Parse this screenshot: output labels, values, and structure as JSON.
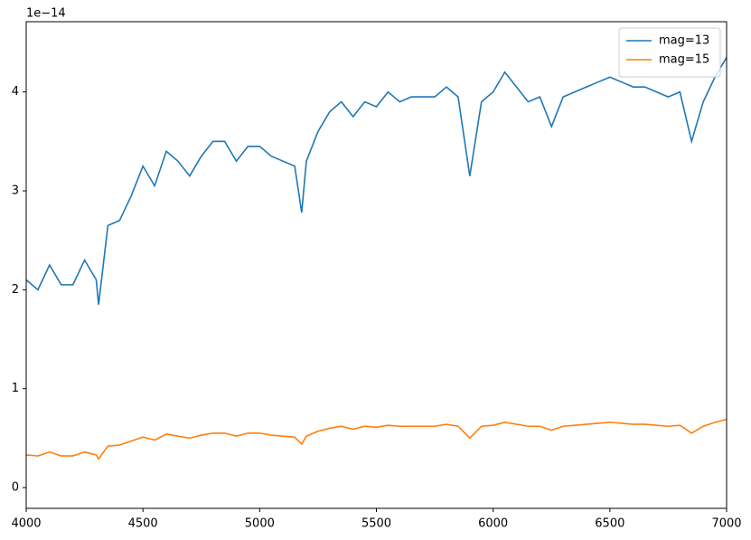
{
  "chart_data": {
    "type": "line",
    "offset_text": "1e−14",
    "x": [
      4000,
      4050,
      4100,
      4150,
      4200,
      4250,
      4300,
      4310,
      4350,
      4400,
      4450,
      4500,
      4550,
      4600,
      4650,
      4700,
      4750,
      4800,
      4850,
      4900,
      4950,
      5000,
      5050,
      5100,
      5150,
      5180,
      5200,
      5250,
      5300,
      5350,
      5400,
      5450,
      5500,
      5550,
      5600,
      5650,
      5700,
      5750,
      5800,
      5850,
      5900,
      5950,
      6000,
      6050,
      6100,
      6150,
      6200,
      6250,
      6300,
      6350,
      6400,
      6450,
      6500,
      6550,
      6600,
      6650,
      6700,
      6750,
      6800,
      6850,
      6900,
      6950,
      7000
    ],
    "series": [
      {
        "name": "mag=13",
        "color": "#1f77b4",
        "values": [
          2.1,
          2.0,
          2.25,
          2.05,
          2.05,
          2.3,
          2.1,
          1.85,
          2.65,
          2.7,
          2.95,
          3.25,
          3.05,
          3.4,
          3.3,
          3.15,
          3.35,
          3.5,
          3.5,
          3.3,
          3.45,
          3.45,
          3.35,
          3.3,
          3.25,
          2.78,
          3.3,
          3.6,
          3.8,
          3.9,
          3.75,
          3.9,
          3.85,
          4.0,
          3.9,
          3.95,
          3.95,
          3.95,
          4.05,
          3.95,
          3.15,
          3.9,
          4.0,
          4.2,
          4.05,
          3.9,
          3.95,
          3.65,
          3.95,
          4.0,
          4.05,
          4.1,
          4.15,
          4.1,
          4.05,
          4.05,
          4.0,
          3.95,
          4.0,
          3.5,
          3.9,
          4.15,
          4.35
        ]
      },
      {
        "name": "mag=15",
        "color": "#ff7f0e",
        "values": [
          0.33,
          0.32,
          0.36,
          0.32,
          0.32,
          0.36,
          0.33,
          0.29,
          0.42,
          0.43,
          0.47,
          0.51,
          0.48,
          0.54,
          0.52,
          0.5,
          0.53,
          0.55,
          0.55,
          0.52,
          0.55,
          0.55,
          0.53,
          0.52,
          0.51,
          0.44,
          0.52,
          0.57,
          0.6,
          0.62,
          0.59,
          0.62,
          0.61,
          0.63,
          0.62,
          0.62,
          0.62,
          0.62,
          0.64,
          0.62,
          0.5,
          0.62,
          0.63,
          0.66,
          0.64,
          0.62,
          0.62,
          0.58,
          0.62,
          0.63,
          0.64,
          0.65,
          0.66,
          0.65,
          0.64,
          0.64,
          0.63,
          0.62,
          0.63,
          0.55,
          0.62,
          0.66,
          0.69
        ]
      }
    ],
    "xlim": [
      4000,
      7000
    ],
    "xticks": [
      4000,
      4500,
      5000,
      5500,
      6000,
      6500,
      7000
    ],
    "ylim": [
      -0.21,
      4.71
    ],
    "yticks": [
      0,
      1,
      2,
      3,
      4
    ],
    "legend": "upper-right",
    "grid": false
  }
}
